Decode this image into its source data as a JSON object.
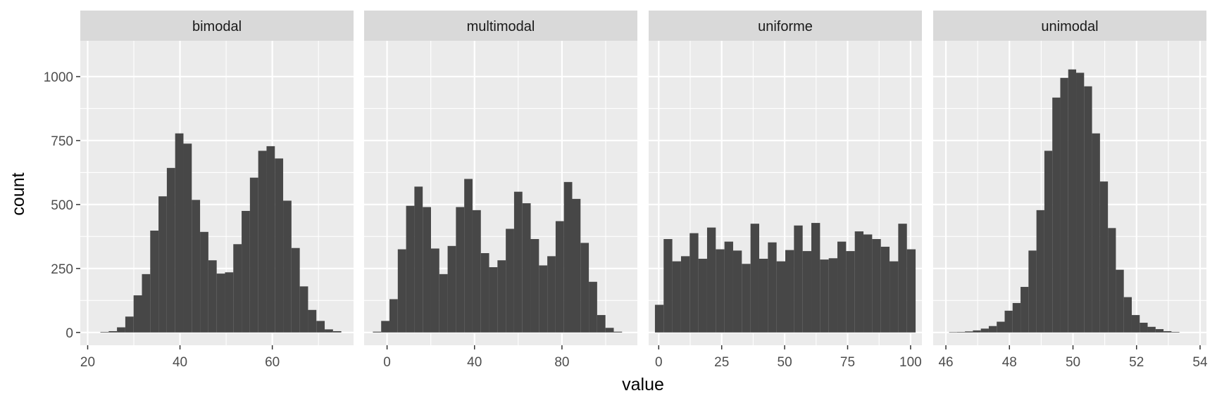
{
  "chart_data": {
    "type": "bar",
    "subtype": "histogram-facets",
    "xlabel": "value",
    "ylabel": "count",
    "ylim": [
      -50,
      1140
    ],
    "yticks": [
      0,
      250,
      500,
      750,
      1000
    ],
    "grid": true,
    "colors": {
      "bar": "#474747",
      "panel": "#ebebeb",
      "strip": "#d9d9d9",
      "grid": "#ffffff"
    },
    "panels": [
      {
        "name": "bimodal",
        "xlim": [
          18.4,
          77.6
        ],
        "xticks": [
          20,
          40,
          60
        ],
        "bin_start": 22.75,
        "binwidth": 1.8,
        "counts": [
          2,
          5,
          20,
          62,
          145,
          228,
          398,
          532,
          643,
          778,
          738,
          518,
          393,
          282,
          230,
          235,
          345,
          475,
          605,
          710,
          728,
          680,
          515,
          330,
          180,
          88,
          45,
          12,
          5
        ]
      },
      {
        "name": "multimodal",
        "xlim": [
          -10.5,
          114.5
        ],
        "xticks": [
          0,
          40,
          80
        ],
        "bin_start": -6.5,
        "binwidth": 3.8,
        "counts": [
          3,
          45,
          130,
          325,
          495,
          570,
          490,
          328,
          228,
          338,
          490,
          600,
          478,
          310,
          255,
          282,
          405,
          550,
          505,
          365,
          262,
          298,
          435,
          588,
          522,
          350,
          198,
          68,
          18,
          3
        ]
      },
      {
        "name": "uniforme",
        "xlim": [
          -4,
          104.5
        ],
        "xticks": [
          0,
          25,
          50,
          75,
          100
        ],
        "bin_start": -1.5,
        "binwidth": 3.45,
        "counts": [
          108,
          365,
          278,
          298,
          388,
          288,
          410,
          325,
          355,
          320,
          268,
          425,
          288,
          352,
          278,
          322,
          418,
          318,
          428,
          285,
          290,
          355,
          318,
          395,
          383,
          365,
          335,
          278,
          425,
          325
        ]
      },
      {
        "name": "unimodal",
        "xlim": [
          45.6,
          54.2
        ],
        "xticks": [
          46,
          48,
          50,
          52,
          54
        ],
        "bin_start": 46.1,
        "binwidth": 0.25,
        "counts": [
          1,
          2,
          4,
          8,
          15,
          25,
          42,
          85,
          115,
          178,
          320,
          478,
          710,
          918,
          995,
          1028,
          1015,
          962,
          778,
          590,
          408,
          245,
          138,
          68,
          38,
          22,
          13,
          5,
          2
        ]
      }
    ]
  }
}
